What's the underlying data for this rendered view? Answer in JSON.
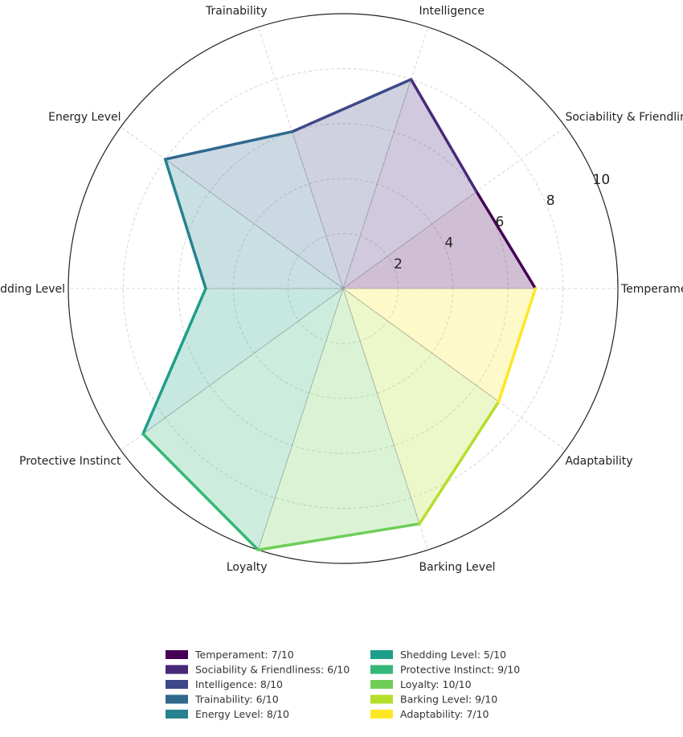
{
  "chart_data": {
    "type": "radar",
    "title": "",
    "categories": [
      "Temperament",
      "Sociability & Friendliness",
      "Intelligence",
      "Trainability",
      "Energy Level",
      "Shedding Level",
      "Protective Instinct",
      "Loyalty",
      "Barking Level",
      "Adaptability"
    ],
    "values": [
      7,
      6,
      8,
      6,
      8,
      5,
      9,
      10,
      9,
      7
    ],
    "rlim": [
      0,
      10
    ],
    "r_ticks": [
      2,
      4,
      6,
      8,
      10
    ],
    "r_tick_labels": [
      "2",
      "4",
      "6",
      "8",
      "10"
    ],
    "grid": true,
    "legend_position": "bottom",
    "legend": [
      "Temperament: 7/10",
      "Sociability & Friendliness: 6/10",
      "Intelligence: 8/10",
      "Trainability: 6/10",
      "Energy Level: 8/10",
      "Shedding Level: 5/10",
      "Protective Instinct: 9/10",
      "Loyalty: 10/10",
      "Barking Level: 9/10",
      "Adaptability: 7/10"
    ],
    "colors": [
      "#440154",
      "#482878",
      "#3e4989",
      "#31688e",
      "#26828e",
      "#1f9e89",
      "#35b779",
      "#6ece58",
      "#b5de2b",
      "#fde725"
    ]
  }
}
